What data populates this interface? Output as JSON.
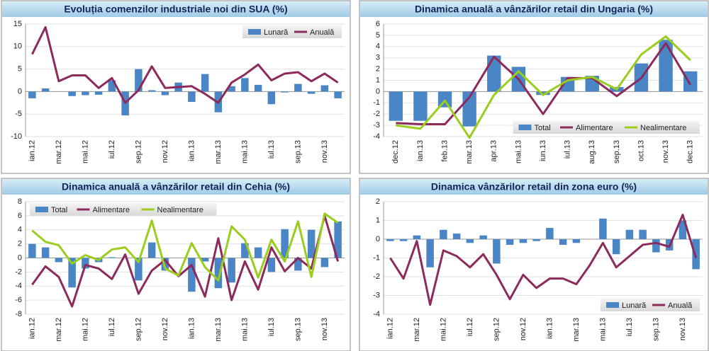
{
  "chart_data": [
    {
      "type": "combo",
      "title": "Evoluția comenzilor industriale noi din SUA (%)",
      "categories": [
        "ian.12",
        null,
        "mar.12",
        null,
        "mai.12",
        null,
        "iul.12",
        null,
        "sep.12",
        null,
        "nov.12",
        null,
        "ian.13",
        null,
        "mar.13",
        null,
        "mai.13",
        null,
        "iul.13",
        null,
        "sep.13",
        null,
        "nov.13",
        null
      ],
      "series": [
        {
          "name": "Lunară",
          "kind": "bar",
          "color": "#4a86c5",
          "values": [
            -1.5,
            0.7,
            0,
            -1,
            -0.8,
            -0.7,
            2.5,
            -5.3,
            5,
            0.3,
            -0.8,
            2,
            -2.3,
            3.9,
            -4.6,
            1.2,
            3,
            1.5,
            -2.8,
            -0.2,
            1.7,
            -0.5,
            1.4,
            -1.5
          ]
        },
        {
          "name": "Anuală",
          "kind": "line",
          "color": "#8b2a5b",
          "values": [
            8.3,
            14.3,
            2.3,
            3.6,
            3.6,
            0.8,
            3,
            -2.5,
            0.3,
            5.6,
            0.8,
            1,
            1.2,
            -0.5,
            -2.5,
            2,
            3.8,
            6,
            2.5,
            4,
            4.3,
            2.3,
            4,
            2
          ]
        }
      ],
      "ylim": [
        -10,
        15
      ],
      "yticks": [
        -10,
        -5,
        0,
        5,
        10,
        15
      ],
      "grid": true,
      "legend": "upper right"
    },
    {
      "type": "combo",
      "title": "Dinamica anuală a vânzărilor retail din Ungaria (%)",
      "categories": [
        "dec.12",
        "ian.13",
        "feb.13",
        "mar.13",
        "apr.13",
        "mai.13",
        "iun.13",
        "iul.13",
        "aug.13",
        "sep.13",
        "oct.13",
        "nov.13",
        "dec.13"
      ],
      "series": [
        {
          "name": "Total",
          "kind": "bar",
          "color": "#4a86c5",
          "values": [
            -2.6,
            -2.6,
            -1.4,
            -3.1,
            3.2,
            2.2,
            -0.3,
            1.3,
            1.4,
            0.4,
            2.5,
            4.6,
            1.8
          ]
        },
        {
          "name": "Alimentare",
          "kind": "line",
          "color": "#8b2a5b",
          "values": [
            -2.8,
            -2.9,
            -2.9,
            -0.5,
            3.1,
            1.1,
            -2,
            1.2,
            1.2,
            -0.4,
            1.2,
            4.3,
            0.6
          ]
        },
        {
          "name": "Nealimentare",
          "kind": "line",
          "color": "#9acd1e",
          "values": [
            -3,
            -3.3,
            -0.8,
            -4.1,
            -0.3,
            1.8,
            -0.3,
            1,
            1.3,
            0.2,
            3.3,
            4.9,
            2.8
          ]
        }
      ],
      "ylim": [
        -4,
        6
      ],
      "yticks": [
        -4,
        -3,
        -2,
        -1,
        0,
        1,
        2,
        3,
        4,
        5,
        6
      ],
      "grid": true,
      "legend": "lower right"
    },
    {
      "type": "combo",
      "title": "Dinamica anuală a vânzărilor retail din Cehia (%)",
      "categories": [
        "ian.12",
        null,
        "mar.12",
        null,
        "mai.12",
        null,
        "iul.12",
        null,
        "sep.12",
        null,
        "nov.12",
        null,
        "ian.13",
        null,
        "mar.13",
        null,
        "mai.13",
        null,
        "iul.13",
        null,
        "sep.13",
        null,
        "nov.13",
        null
      ],
      "series": [
        {
          "name": "Total",
          "kind": "bar",
          "color": "#4a86c5",
          "values": [
            2,
            1.5,
            -0.6,
            -4.2,
            -1.5,
            -0.6,
            0.1,
            0,
            -3.2,
            2.2,
            -1.8,
            0,
            -4.8,
            -0.5,
            -4.3,
            -3.5,
            2.1,
            1.5,
            -2,
            4.1,
            -1.8,
            4,
            -1.3,
            5.2
          ]
        },
        {
          "name": "Alimentare",
          "kind": "line",
          "color": "#8b2a5b",
          "values": [
            -3.8,
            -1.2,
            -2.7,
            -6.9,
            -1,
            -1.5,
            -3,
            0.5,
            -5.1,
            -1.8,
            -0.3,
            -2.6,
            -1,
            -5.5,
            2.8,
            -6,
            -0.5,
            -4.5,
            1.5,
            -1.9,
            0,
            -1.5,
            6,
            -0.5
          ]
        },
        {
          "name": "Nealimentare",
          "kind": "line",
          "color": "#9acd1e",
          "values": [
            3.9,
            2.3,
            1.8,
            -0.8,
            0.4,
            -0.3,
            1.2,
            1.5,
            -0.6,
            5.3,
            -1.5,
            -2.5,
            2.1,
            -1.3,
            -3.2,
            4.5,
            2.6,
            -2.8,
            2.6,
            -0.5,
            5.2,
            -2.7,
            6.3,
            5
          ]
        }
      ],
      "ylim": [
        -8,
        8
      ],
      "yticks": [
        -8,
        -6,
        -4,
        -2,
        0,
        2,
        4,
        6,
        8
      ],
      "grid": true,
      "legend": "upper left"
    },
    {
      "type": "combo",
      "title": "Dinamica vânzărilor retail din zona euro (%)",
      "categories": [
        "ian.12",
        null,
        "mar.12",
        null,
        "mai.12",
        null,
        "iul.12",
        null,
        "sep.12",
        null,
        "nov.12",
        null,
        "ian.13",
        null,
        "mar.13",
        null,
        "mai.13",
        null,
        "iul.13",
        null,
        "sep.13",
        null,
        "nov.13",
        null
      ],
      "series": [
        {
          "name": "Lunară",
          "kind": "bar",
          "color": "#4a86c5",
          "values": [
            -0.1,
            -0.1,
            0.2,
            -1.5,
            0.5,
            0.3,
            -0.2,
            0.2,
            -1.3,
            -0.3,
            -0.2,
            -0.1,
            0.6,
            -0.3,
            -0.2,
            0,
            1.1,
            -0.8,
            0.5,
            0.5,
            -0.7,
            -0.6,
            1,
            -1.6
          ]
        },
        {
          "name": "Anuală",
          "kind": "line",
          "color": "#8b2a5b",
          "values": [
            -1,
            -2.1,
            -0.1,
            -3.5,
            -0.6,
            -0.9,
            -1.5,
            -0.8,
            -1.9,
            -3.2,
            -1.9,
            -2.6,
            -2.1,
            -2.1,
            -2.4,
            -1.4,
            -0.2,
            -1.5,
            -0.9,
            -0.3,
            -0.2,
            -0.4,
            1.3,
            -1
          ]
        }
      ],
      "ylim": [
        -4,
        2
      ],
      "yticks": [
        -4,
        -3,
        -2,
        -1,
        0,
        1,
        2
      ],
      "grid": true,
      "legend": "lower right"
    }
  ]
}
